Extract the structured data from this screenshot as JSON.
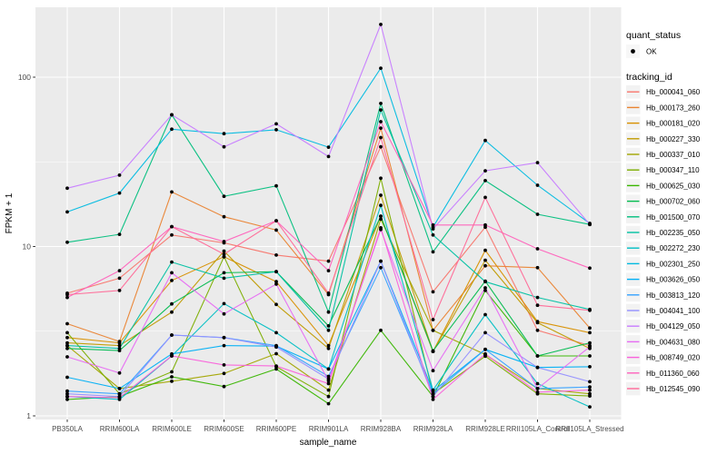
{
  "legend": {
    "quant_status_title": "quant_status",
    "quant_status_items": [
      {
        "label": "OK"
      }
    ],
    "tracking_title": "tracking_id"
  },
  "chart_data": {
    "type": "line",
    "title": "",
    "xlabel": "sample_name",
    "ylabel": "FPKM + 1",
    "y_scale": "log10",
    "y_ticks": [
      1,
      10,
      100
    ],
    "y_minor_ticks": [
      3.162,
      31.62
    ],
    "ylim": [
      1,
      260
    ],
    "grid": true,
    "legend_position": "right",
    "point_color": "#000000",
    "panel_color": "#ebebeb",
    "key_box_color": "#f2f2f2",
    "categories": [
      "PB350LA",
      "RRIM600LA",
      "RRIM600LE",
      "RRIM600SE",
      "RRIM600PE",
      "RRIM901LA",
      "RRIM928BA",
      "RRIM928LA",
      "RRIM928LE",
      "RRII105LA_Control",
      "RRII105LA_Stressed"
    ],
    "series": [
      {
        "name": "Hb_000041_060",
        "color": "#F8766D",
        "quant_status": "OK",
        "values": [
          5.3,
          6.5,
          11.7,
          10.5,
          8.9,
          8.2,
          38.8,
          5.4,
          13.0,
          3.2,
          2.6
        ]
      },
      {
        "name": "Hb_000173_260",
        "color": "#EA8331",
        "quant_status": "OK",
        "values": [
          3.5,
          2.75,
          21.0,
          15.0,
          12.5,
          5.2,
          50.0,
          3.2,
          7.7,
          7.5,
          3.3
        ]
      },
      {
        "name": "Hb_000181_020",
        "color": "#D89000",
        "quant_status": "OK",
        "values": [
          2.9,
          2.7,
          6.3,
          8.7,
          6.2,
          2.6,
          15.1,
          2.4,
          9.5,
          3.6,
          3.1
        ]
      },
      {
        "name": "Hb_000227_330",
        "color": "#C09B00",
        "quant_status": "OK",
        "values": [
          2.7,
          2.6,
          4.1,
          9.4,
          4.55,
          2.5,
          20.1,
          2.4,
          8.3,
          3.55,
          2.5
        ]
      },
      {
        "name": "Hb_000337_010",
        "color": "#A3A500",
        "quant_status": "OK",
        "values": [
          2.6,
          1.45,
          1.6,
          1.78,
          2.33,
          1.42,
          14.5,
          3.2,
          2.3,
          1.45,
          1.35
        ]
      },
      {
        "name": "Hb_000347_110",
        "color": "#7CAE00",
        "quant_status": "OK",
        "values": [
          3.1,
          1.35,
          1.82,
          8.7,
          1.95,
          1.3,
          25.3,
          1.35,
          2.25,
          1.35,
          1.31
        ]
      },
      {
        "name": "Hb_000625_030",
        "color": "#39B600",
        "quant_status": "OK",
        "values": [
          1.25,
          1.3,
          1.7,
          1.49,
          1.89,
          1.18,
          3.2,
          1.3,
          5.5,
          2.26,
          2.26
        ]
      },
      {
        "name": "Hb_000702_060",
        "color": "#00BB4E",
        "quant_status": "OK",
        "values": [
          2.5,
          2.43,
          4.58,
          7.0,
          7.1,
          3.4,
          15.1,
          2.42,
          6.25,
          2.26,
          2.7
        ]
      },
      {
        "name": "Hb_001500_070",
        "color": "#00BF7D",
        "quant_status": "OK",
        "values": [
          10.6,
          11.8,
          60.0,
          19.8,
          22.8,
          4.1,
          70.0,
          9.3,
          24.5,
          15.5,
          13.5
        ]
      },
      {
        "name": "Hb_002235_050",
        "color": "#00C1A3",
        "quant_status": "OK",
        "values": [
          2.6,
          2.5,
          8.1,
          6.5,
          7.1,
          3.2,
          64.0,
          11.7,
          6.2,
          5.0,
          4.25
        ]
      },
      {
        "name": "Hb_002272_230",
        "color": "#00BFC4",
        "quant_status": "OK",
        "values": [
          1.3,
          1.25,
          2.26,
          4.6,
          3.1,
          1.89,
          17.5,
          1.42,
          3.96,
          1.55,
          1.13
        ]
      },
      {
        "name": "Hb_002301_250",
        "color": "#00BAE0",
        "quant_status": "OK",
        "values": [
          16.0,
          20.7,
          49.3,
          46.4,
          48.9,
          38.6,
          113.0,
          13.0,
          42.3,
          23.0,
          13.7
        ]
      },
      {
        "name": "Hb_003626_050",
        "color": "#00B0F6",
        "quant_status": "OK",
        "values": [
          1.69,
          1.45,
          2.32,
          2.6,
          2.58,
          1.89,
          8.2,
          1.4,
          2.47,
          1.93,
          1.95
        ]
      },
      {
        "name": "Hb_003813_120",
        "color": "#35A2FF",
        "quant_status": "OK",
        "values": [
          1.4,
          1.35,
          3.0,
          2.9,
          2.6,
          1.71,
          7.5,
          1.35,
          2.47,
          1.45,
          1.48
        ]
      },
      {
        "name": "Hb_004041_100",
        "color": "#9590FF",
        "quant_status": "OK",
        "values": [
          1.35,
          1.3,
          3.0,
          2.9,
          2.55,
          1.65,
          8.2,
          1.3,
          3.1,
          1.93,
          1.59
        ]
      },
      {
        "name": "Hb_004129_050",
        "color": "#C77CFF",
        "quant_status": "OK",
        "values": [
          22.1,
          26.4,
          60.0,
          38.8,
          53.0,
          34.0,
          205.0,
          12.7,
          28.0,
          31.3,
          13.5
        ]
      },
      {
        "name": "Hb_004631_080",
        "color": "#E76BF3",
        "quant_status": "OK",
        "values": [
          2.23,
          1.79,
          7.0,
          4.0,
          6.0,
          1.61,
          12.6,
          1.85,
          5.7,
          1.45,
          2.56
        ]
      },
      {
        "name": "Hb_008749_020",
        "color": "#FA62DB",
        "quant_status": "OK",
        "values": [
          1.3,
          1.28,
          2.26,
          2.0,
          1.97,
          1.55,
          12.9,
          1.25,
          2.32,
          1.38,
          1.42
        ]
      },
      {
        "name": "Hb_011360_060",
        "color": "#FF62BC",
        "quant_status": "OK",
        "values": [
          5.0,
          7.2,
          13.1,
          10.7,
          14.2,
          7.2,
          54.6,
          13.4,
          13.4,
          9.7,
          7.45
        ]
      },
      {
        "name": "Hb_012545_090",
        "color": "#FF6A98",
        "quant_status": "OK",
        "values": [
          5.2,
          5.5,
          13.1,
          9.0,
          14.2,
          5.3,
          44.0,
          3.7,
          19.5,
          4.5,
          4.2
        ]
      }
    ]
  }
}
